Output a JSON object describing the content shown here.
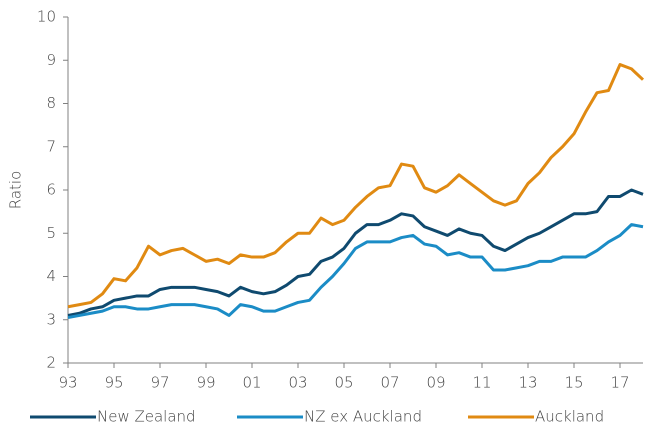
{
  "chart_data": {
    "type": "line",
    "y_label": "Ratio",
    "x": [
      1993,
      1993.5,
      1994,
      1994.5,
      1995,
      1995.5,
      1996,
      1996.5,
      1997,
      1997.5,
      1998,
      1998.5,
      1999,
      1999.5,
      2000,
      2000.5,
      2001,
      2001.5,
      2002,
      2002.5,
      2003,
      2003.5,
      2004,
      2004.5,
      2005,
      2005.5,
      2006,
      2006.5,
      2007,
      2007.5,
      2008,
      2008.5,
      2009,
      2009.5,
      2010,
      2010.5,
      2011,
      2011.5,
      2012,
      2012.5,
      2013,
      2013.5,
      2014,
      2014.5,
      2015,
      2015.5,
      2016,
      2016.5,
      2017,
      2017.5,
      2018
    ],
    "series": [
      {
        "name": "New Zealand",
        "color": "#0f4a6f",
        "values": [
          3.1,
          3.15,
          3.25,
          3.3,
          3.45,
          3.5,
          3.55,
          3.55,
          3.7,
          3.75,
          3.75,
          3.75,
          3.7,
          3.65,
          3.55,
          3.75,
          3.65,
          3.6,
          3.65,
          3.8,
          4.0,
          4.05,
          4.35,
          4.45,
          4.65,
          5.0,
          5.2,
          5.2,
          5.3,
          5.45,
          5.4,
          5.15,
          5.05,
          4.95,
          5.1,
          5.0,
          4.95,
          4.7,
          4.6,
          4.75,
          4.9,
          5.0,
          5.15,
          5.3,
          5.45,
          5.45,
          5.5,
          5.85,
          5.85,
          6.0,
          5.9
        ]
      },
      {
        "name": "NZ ex Auckland",
        "color": "#1b8cc6",
        "values": [
          3.05,
          3.1,
          3.15,
          3.2,
          3.3,
          3.3,
          3.25,
          3.25,
          3.3,
          3.35,
          3.35,
          3.35,
          3.3,
          3.25,
          3.1,
          3.35,
          3.3,
          3.2,
          3.2,
          3.3,
          3.4,
          3.45,
          3.75,
          4.0,
          4.3,
          4.65,
          4.8,
          4.8,
          4.8,
          4.9,
          4.95,
          4.75,
          4.7,
          4.5,
          4.55,
          4.45,
          4.45,
          4.15,
          4.15,
          4.2,
          4.25,
          4.35,
          4.35,
          4.45,
          4.45,
          4.45,
          4.6,
          4.8,
          4.95,
          5.2,
          5.15
        ]
      },
      {
        "name": "Auckland",
        "color": "#e08a12",
        "values": [
          3.3,
          3.35,
          3.4,
          3.6,
          3.95,
          3.9,
          4.2,
          4.7,
          4.5,
          4.6,
          4.65,
          4.5,
          4.35,
          4.4,
          4.3,
          4.5,
          4.45,
          4.45,
          4.55,
          4.8,
          5.0,
          5.0,
          5.35,
          5.2,
          5.3,
          5.6,
          5.85,
          6.05,
          6.1,
          6.6,
          6.55,
          6.05,
          5.95,
          6.1,
          6.35,
          6.15,
          5.95,
          5.75,
          5.65,
          5.75,
          6.15,
          6.4,
          6.75,
          7.0,
          7.3,
          7.8,
          8.25,
          8.3,
          8.9,
          8.8,
          8.55
        ]
      }
    ],
    "xlim": [
      1993,
      2018
    ],
    "xticks": [
      {
        "value": 1993,
        "label": "93"
      },
      {
        "value": 1995,
        "label": "95"
      },
      {
        "value": 1997,
        "label": "97"
      },
      {
        "value": 1999,
        "label": "99"
      },
      {
        "value": 2001,
        "label": "01"
      },
      {
        "value": 2003,
        "label": "03"
      },
      {
        "value": 2005,
        "label": "05"
      },
      {
        "value": 2007,
        "label": "07"
      },
      {
        "value": 2009,
        "label": "09"
      },
      {
        "value": 2011,
        "label": "11"
      },
      {
        "value": 2013,
        "label": "13"
      },
      {
        "value": 2015,
        "label": "15"
      },
      {
        "value": 2017,
        "label": "17"
      }
    ],
    "ylim": [
      2,
      10
    ],
    "yticks": [
      2,
      3,
      4,
      5,
      6,
      7,
      8,
      9,
      10
    ],
    "legend": "bottom"
  }
}
